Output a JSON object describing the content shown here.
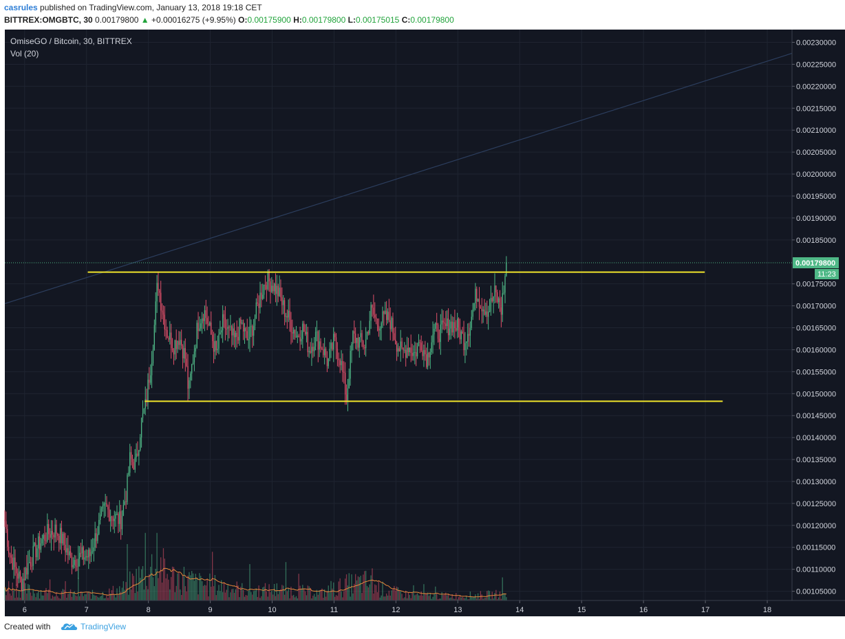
{
  "header": {
    "author": "casrules",
    "published_text": " published on TradingView.com, January 13, 2018 19:18 CET",
    "symbol": "BITTREX:OMGBTC, 30",
    "last": "0.00179800",
    "change_arrow": "▲",
    "change": "+0.00016275 (+9.95%)",
    "o_label": "O:",
    "o_value": "0.00175900",
    "h_label": "H:",
    "h_value": "0.00179800",
    "l_label": "L:",
    "l_value": "0.00175015",
    "c_label": "C:",
    "c_value": "0.00179800"
  },
  "legend": {
    "title": "OmiseGO / Bitcoin, 30, BITTREX",
    "volume": "Vol (20)"
  },
  "footer": {
    "created_text": "Created with",
    "brand": "TradingView",
    "logo_icon": "tradingview-cloud-logo"
  },
  "colors": {
    "background": "#131722",
    "grid": "#1f2431",
    "up": "#4fb887",
    "down": "#e0506a",
    "level_line": "#f1e52b",
    "trend_line": "#2c3e5e",
    "volume_ma": "#e8883a",
    "price_tag": "#4fb887",
    "axis_text": "#d1d4dc"
  },
  "chart_data": {
    "type": "candlestick",
    "title": "OmiseGO / Bitcoin, 30, BITTREX",
    "timeframe": "30",
    "x_tick_labels": [
      "6",
      "7",
      "8",
      "9",
      "10",
      "11",
      "12",
      "13",
      "14",
      "15",
      "16",
      "17",
      "18"
    ],
    "y_tick_labels": [
      "0.00230000",
      "0.00225000",
      "0.00220000",
      "0.00215000",
      "0.00210000",
      "0.00205000",
      "0.00200000",
      "0.00195000",
      "0.00190000",
      "0.00185000",
      "0.00175000",
      "0.00170000",
      "0.00165000",
      "0.00160000",
      "0.00155000",
      "0.00150000",
      "0.00145000",
      "0.00140000",
      "0.00135000",
      "0.00130000",
      "0.00125000",
      "0.00120000",
      "0.00115000",
      "0.00110000",
      "0.00105000"
    ],
    "x_range_days": [
      5.68,
      18.4
    ],
    "y_range": [
      0.001029,
      0.002329
    ],
    "last_price": 0.001798,
    "last_price_label": "0.00179800",
    "countdown_label": "11:23",
    "price_path": [
      [
        5.68,
        0.00121
      ],
      [
        5.75,
        0.00114
      ],
      [
        5.85,
        0.0011
      ],
      [
        5.95,
        0.00107
      ],
      [
        6.05,
        0.00111
      ],
      [
        6.2,
        0.00115
      ],
      [
        6.35,
        0.00118
      ],
      [
        6.5,
        0.00119
      ],
      [
        6.6,
        0.00117
      ],
      [
        6.75,
        0.00112
      ],
      [
        6.9,
        0.00113
      ],
      [
        7.05,
        0.00113
      ],
      [
        7.2,
        0.0012
      ],
      [
        7.3,
        0.00124
      ],
      [
        7.45,
        0.00122
      ],
      [
        7.55,
        0.00121
      ],
      [
        7.65,
        0.00128
      ],
      [
        7.7,
        0.00135
      ],
      [
        7.8,
        0.00134
      ],
      [
        7.88,
        0.00143
      ],
      [
        7.95,
        0.00147
      ],
      [
        8.05,
        0.00158
      ],
      [
        8.1,
        0.00166
      ],
      [
        8.15,
        0.00176
      ],
      [
        8.2,
        0.00171
      ],
      [
        8.3,
        0.00164
      ],
      [
        8.4,
        0.00161
      ],
      [
        8.5,
        0.00163
      ],
      [
        8.6,
        0.00158
      ],
      [
        8.65,
        0.0015
      ],
      [
        8.7,
        0.00156
      ],
      [
        8.8,
        0.00166
      ],
      [
        8.9,
        0.00169
      ],
      [
        9.0,
        0.00164
      ],
      [
        9.1,
        0.00159
      ],
      [
        9.2,
        0.00166
      ],
      [
        9.3,
        0.00164
      ],
      [
        9.4,
        0.00162
      ],
      [
        9.5,
        0.00166
      ],
      [
        9.6,
        0.00162
      ],
      [
        9.7,
        0.00166
      ],
      [
        9.8,
        0.00172
      ],
      [
        9.9,
        0.00176
      ],
      [
        10.0,
        0.00175
      ],
      [
        10.1,
        0.00173
      ],
      [
        10.2,
        0.00169
      ],
      [
        10.3,
        0.00166
      ],
      [
        10.4,
        0.00163
      ],
      [
        10.5,
        0.00165
      ],
      [
        10.6,
        0.0016
      ],
      [
        10.7,
        0.00163
      ],
      [
        10.8,
        0.00161
      ],
      [
        10.9,
        0.00157
      ],
      [
        11.0,
        0.00162
      ],
      [
        11.1,
        0.00158
      ],
      [
        11.2,
        0.00149
      ],
      [
        11.3,
        0.00163
      ],
      [
        11.4,
        0.00162
      ],
      [
        11.5,
        0.00161
      ],
      [
        11.6,
        0.00169
      ],
      [
        11.7,
        0.00166
      ],
      [
        11.8,
        0.00167
      ],
      [
        11.9,
        0.00167
      ],
      [
        12.0,
        0.00162
      ],
      [
        12.1,
        0.00159
      ],
      [
        12.2,
        0.00161
      ],
      [
        12.3,
        0.00159
      ],
      [
        12.4,
        0.00162
      ],
      [
        12.5,
        0.00158
      ],
      [
        12.6,
        0.00164
      ],
      [
        12.7,
        0.00164
      ],
      [
        12.8,
        0.00165
      ],
      [
        12.9,
        0.00166
      ],
      [
        13.0,
        0.00165
      ],
      [
        13.1,
        0.00162
      ],
      [
        13.2,
        0.00166
      ],
      [
        13.3,
        0.00173
      ],
      [
        13.4,
        0.0017
      ],
      [
        13.5,
        0.00169
      ],
      [
        13.6,
        0.00173
      ],
      [
        13.7,
        0.00169
      ],
      [
        13.75,
        0.00175
      ],
      [
        13.8,
        0.001798
      ]
    ],
    "horizontal_levels": [
      {
        "price": 0.00177668,
        "x_start": 7.02,
        "x_end": 16.99
      },
      {
        "price": 0.00148268,
        "x_start": 7.94,
        "x_end": 17.28
      }
    ],
    "trend_line": {
      "x_start": 5.68,
      "y_start": 0.001705,
      "x_end": 18.4,
      "y_end": 0.002275
    },
    "volume": {
      "label": "Vol (20)",
      "ma_length": 20,
      "profile": [
        [
          5.68,
          0.3
        ],
        [
          6.0,
          0.22
        ],
        [
          6.5,
          0.15
        ],
        [
          7.0,
          0.12
        ],
        [
          7.3,
          0.14
        ],
        [
          7.6,
          0.25
        ],
        [
          7.8,
          0.45
        ],
        [
          8.0,
          0.6
        ],
        [
          8.15,
          0.85
        ],
        [
          8.3,
          0.5
        ],
        [
          8.6,
          0.45
        ],
        [
          8.8,
          0.35
        ],
        [
          9.2,
          0.3
        ],
        [
          9.6,
          0.2
        ],
        [
          10.0,
          0.22
        ],
        [
          10.4,
          0.2
        ],
        [
          10.8,
          0.15
        ],
        [
          11.2,
          0.32
        ],
        [
          11.5,
          0.38
        ],
        [
          11.8,
          0.22
        ],
        [
          12.2,
          0.12
        ],
        [
          12.6,
          0.1
        ],
        [
          13.0,
          0.1
        ],
        [
          13.5,
          0.12
        ],
        [
          13.8,
          0.14
        ]
      ]
    },
    "grid": true
  }
}
